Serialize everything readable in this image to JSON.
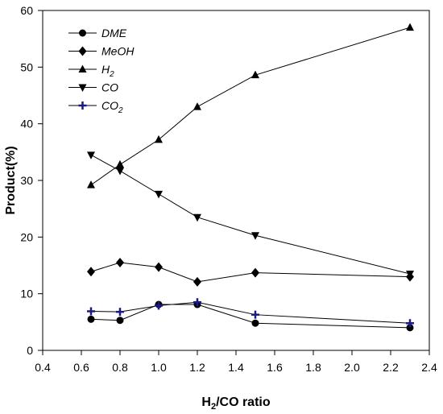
{
  "chart_data": {
    "type": "line",
    "title": "",
    "xlabel": "H2/CO ratio",
    "xlabel_parts": {
      "pre": "H",
      "sub": "2",
      "post": "/CO ratio"
    },
    "ylabel": "Product(%)",
    "xlim": [
      0.4,
      2.4
    ],
    "ylim": [
      0,
      60
    ],
    "xticks": [
      "0.4",
      "0.6",
      "0.8",
      "1.0",
      "1.2",
      "1.4",
      "1.6",
      "1.8",
      "2.0",
      "2.2",
      "2.4"
    ],
    "yticks": [
      "0",
      "10",
      "20",
      "30",
      "40",
      "50",
      "60"
    ],
    "x": [
      0.65,
      0.8,
      1.0,
      1.2,
      1.5,
      2.3
    ],
    "grid": false,
    "legend_position": "top-left",
    "series": [
      {
        "name": "DME",
        "name_parts": {
          "pre": "DME",
          "sub": ""
        },
        "marker": "circle",
        "color": "#000000",
        "values": [
          5.5,
          5.3,
          8.1,
          8.1,
          4.8,
          4.0
        ]
      },
      {
        "name": "MeOH",
        "name_parts": {
          "pre": "MeOH",
          "sub": ""
        },
        "marker": "diamond",
        "color": "#000000",
        "values": [
          13.9,
          15.5,
          14.7,
          12.1,
          13.7,
          13.0
        ]
      },
      {
        "name": "H2",
        "name_parts": {
          "pre": "H",
          "sub": "2"
        },
        "marker": "triangle-up",
        "color": "#000000",
        "values": [
          29.2,
          32.8,
          37.2,
          43.0,
          48.6,
          57.0
        ]
      },
      {
        "name": "CO",
        "name_parts": {
          "pre": "CO",
          "sub": ""
        },
        "marker": "triangle-down",
        "color": "#000000",
        "values": [
          34.5,
          31.7,
          27.6,
          23.5,
          20.3,
          13.5
        ]
      },
      {
        "name": "CO2",
        "name_parts": {
          "pre": "CO",
          "sub": "2"
        },
        "marker": "plus",
        "color": "#1a1a80",
        "values": [
          6.9,
          6.8,
          7.9,
          8.5,
          6.3,
          4.8
        ]
      }
    ]
  }
}
